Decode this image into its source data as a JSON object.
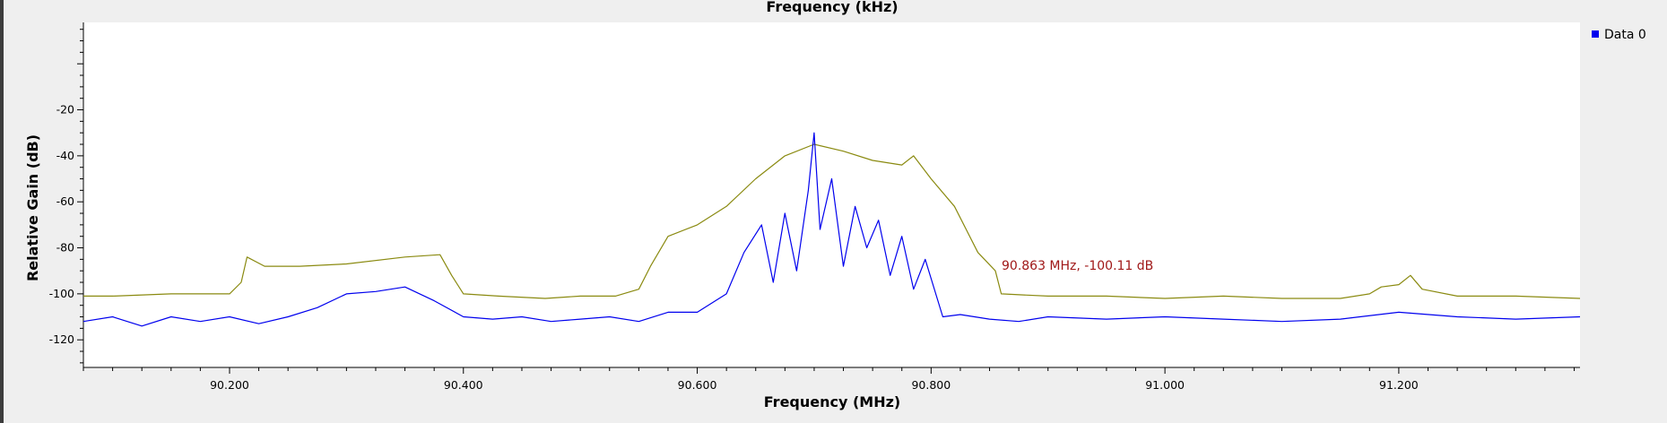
{
  "chart_data": {
    "type": "line",
    "top_axis_label": "Frequency (kHz)",
    "xlabel": "Frequency (MHz)",
    "ylabel": "Relative Gain (dB)",
    "xlim": [
      90.075,
      91.355
    ],
    "ylim": [
      -132,
      18
    ],
    "x_ticks": [
      {
        "value": 90.2,
        "label": "90.200"
      },
      {
        "value": 90.4,
        "label": "90.400"
      },
      {
        "value": 90.6,
        "label": "90.600"
      },
      {
        "value": 90.8,
        "label": "90.800"
      },
      {
        "value": 91.0,
        "label": "91.000"
      },
      {
        "value": 91.2,
        "label": "91.200"
      }
    ],
    "y_ticks": [
      {
        "value": -20,
        "label": "-20"
      },
      {
        "value": -40,
        "label": "-40"
      },
      {
        "value": -60,
        "label": "-60"
      },
      {
        "value": -80,
        "label": "-80"
      },
      {
        "value": -100,
        "label": "-100"
      },
      {
        "value": -120,
        "label": "-120"
      }
    ],
    "grid": false,
    "legend_position": "top-right",
    "series": [
      {
        "name": "Data 0",
        "color": "#0000ee",
        "x": [
          90.075,
          90.1,
          90.125,
          90.15,
          90.175,
          90.2,
          90.225,
          90.25,
          90.275,
          90.3,
          90.325,
          90.35,
          90.375,
          90.4,
          90.425,
          90.45,
          90.475,
          90.5,
          90.525,
          90.55,
          90.575,
          90.6,
          90.625,
          90.64,
          90.655,
          90.665,
          90.675,
          90.685,
          90.695,
          90.7,
          90.705,
          90.715,
          90.725,
          90.735,
          90.745,
          90.755,
          90.765,
          90.775,
          90.785,
          90.795,
          90.81,
          90.825,
          90.85,
          90.875,
          90.9,
          90.95,
          91.0,
          91.05,
          91.1,
          91.15,
          91.2,
          91.25,
          91.3,
          91.355
        ],
        "y": [
          -112,
          -110,
          -114,
          -110,
          -112,
          -110,
          -113,
          -110,
          -106,
          -100,
          -99,
          -97,
          -103,
          -110,
          -111,
          -110,
          -112,
          -111,
          -110,
          -112,
          -108,
          -108,
          -100,
          -82,
          -70,
          -95,
          -65,
          -90,
          -55,
          -30,
          -72,
          -50,
          -88,
          -62,
          -80,
          -68,
          -92,
          -75,
          -98,
          -85,
          -110,
          -109,
          -111,
          -112,
          -110,
          -111,
          -110,
          -111,
          -112,
          -111,
          -108,
          -110,
          -111,
          -110
        ]
      },
      {
        "color": "#8a8a10",
        "x": [
          90.075,
          90.1,
          90.15,
          90.2,
          90.21,
          90.215,
          90.23,
          90.26,
          90.3,
          90.35,
          90.38,
          90.39,
          90.4,
          90.43,
          90.47,
          90.5,
          90.53,
          90.55,
          90.56,
          90.575,
          90.6,
          90.625,
          90.65,
          90.675,
          90.7,
          90.725,
          90.75,
          90.775,
          90.785,
          90.8,
          90.82,
          90.84,
          90.855,
          90.86,
          90.9,
          90.95,
          91.0,
          91.05,
          91.1,
          91.15,
          91.175,
          91.185,
          91.2,
          91.21,
          91.22,
          91.25,
          91.3,
          91.355
        ],
        "y": [
          -101,
          -101,
          -100,
          -100,
          -95,
          -84,
          -88,
          -88,
          -87,
          -84,
          -83,
          -92,
          -100,
          -101,
          -102,
          -101,
          -101,
          -98,
          -88,
          -75,
          -70,
          -62,
          -50,
          -40,
          -35,
          -38,
          -42,
          -44,
          -40,
          -50,
          -62,
          -82,
          -90,
          -100,
          -101,
          -101,
          -102,
          -101,
          -102,
          -102,
          -100,
          -97,
          -96,
          -92,
          -98,
          -101,
          -101,
          -102
        ]
      }
    ],
    "marker_label": "90.863 MHz, -100.11 dB"
  }
}
